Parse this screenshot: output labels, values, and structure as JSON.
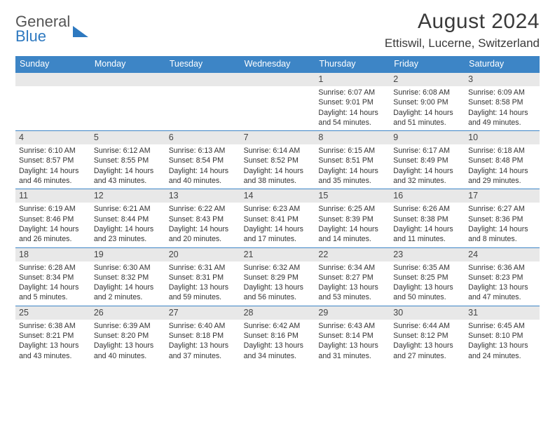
{
  "logo": {
    "line1": "General",
    "line2": "Blue"
  },
  "title": "August 2024",
  "location": "Ettiswil, Lucerne, Switzerland",
  "colors": {
    "header_bg": "#3d85c6",
    "header_text": "#ffffff",
    "daynum_bg": "#e8e8e8",
    "border": "#3d85c6",
    "text": "#3a3a3a"
  },
  "weekdays": [
    "Sunday",
    "Monday",
    "Tuesday",
    "Wednesday",
    "Thursday",
    "Friday",
    "Saturday"
  ],
  "weeks": [
    [
      null,
      null,
      null,
      null,
      {
        "n": "1",
        "sr": "6:07 AM",
        "ss": "9:01 PM",
        "dl": "14 hours and 54 minutes."
      },
      {
        "n": "2",
        "sr": "6:08 AM",
        "ss": "9:00 PM",
        "dl": "14 hours and 51 minutes."
      },
      {
        "n": "3",
        "sr": "6:09 AM",
        "ss": "8:58 PM",
        "dl": "14 hours and 49 minutes."
      }
    ],
    [
      {
        "n": "4",
        "sr": "6:10 AM",
        "ss": "8:57 PM",
        "dl": "14 hours and 46 minutes."
      },
      {
        "n": "5",
        "sr": "6:12 AM",
        "ss": "8:55 PM",
        "dl": "14 hours and 43 minutes."
      },
      {
        "n": "6",
        "sr": "6:13 AM",
        "ss": "8:54 PM",
        "dl": "14 hours and 40 minutes."
      },
      {
        "n": "7",
        "sr": "6:14 AM",
        "ss": "8:52 PM",
        "dl": "14 hours and 38 minutes."
      },
      {
        "n": "8",
        "sr": "6:15 AM",
        "ss": "8:51 PM",
        "dl": "14 hours and 35 minutes."
      },
      {
        "n": "9",
        "sr": "6:17 AM",
        "ss": "8:49 PM",
        "dl": "14 hours and 32 minutes."
      },
      {
        "n": "10",
        "sr": "6:18 AM",
        "ss": "8:48 PM",
        "dl": "14 hours and 29 minutes."
      }
    ],
    [
      {
        "n": "11",
        "sr": "6:19 AM",
        "ss": "8:46 PM",
        "dl": "14 hours and 26 minutes."
      },
      {
        "n": "12",
        "sr": "6:21 AM",
        "ss": "8:44 PM",
        "dl": "14 hours and 23 minutes."
      },
      {
        "n": "13",
        "sr": "6:22 AM",
        "ss": "8:43 PM",
        "dl": "14 hours and 20 minutes."
      },
      {
        "n": "14",
        "sr": "6:23 AM",
        "ss": "8:41 PM",
        "dl": "14 hours and 17 minutes."
      },
      {
        "n": "15",
        "sr": "6:25 AM",
        "ss": "8:39 PM",
        "dl": "14 hours and 14 minutes."
      },
      {
        "n": "16",
        "sr": "6:26 AM",
        "ss": "8:38 PM",
        "dl": "14 hours and 11 minutes."
      },
      {
        "n": "17",
        "sr": "6:27 AM",
        "ss": "8:36 PM",
        "dl": "14 hours and 8 minutes."
      }
    ],
    [
      {
        "n": "18",
        "sr": "6:28 AM",
        "ss": "8:34 PM",
        "dl": "14 hours and 5 minutes."
      },
      {
        "n": "19",
        "sr": "6:30 AM",
        "ss": "8:32 PM",
        "dl": "14 hours and 2 minutes."
      },
      {
        "n": "20",
        "sr": "6:31 AM",
        "ss": "8:31 PM",
        "dl": "13 hours and 59 minutes."
      },
      {
        "n": "21",
        "sr": "6:32 AM",
        "ss": "8:29 PM",
        "dl": "13 hours and 56 minutes."
      },
      {
        "n": "22",
        "sr": "6:34 AM",
        "ss": "8:27 PM",
        "dl": "13 hours and 53 minutes."
      },
      {
        "n": "23",
        "sr": "6:35 AM",
        "ss": "8:25 PM",
        "dl": "13 hours and 50 minutes."
      },
      {
        "n": "24",
        "sr": "6:36 AM",
        "ss": "8:23 PM",
        "dl": "13 hours and 47 minutes."
      }
    ],
    [
      {
        "n": "25",
        "sr": "6:38 AM",
        "ss": "8:21 PM",
        "dl": "13 hours and 43 minutes."
      },
      {
        "n": "26",
        "sr": "6:39 AM",
        "ss": "8:20 PM",
        "dl": "13 hours and 40 minutes."
      },
      {
        "n": "27",
        "sr": "6:40 AM",
        "ss": "8:18 PM",
        "dl": "13 hours and 37 minutes."
      },
      {
        "n": "28",
        "sr": "6:42 AM",
        "ss": "8:16 PM",
        "dl": "13 hours and 34 minutes."
      },
      {
        "n": "29",
        "sr": "6:43 AM",
        "ss": "8:14 PM",
        "dl": "13 hours and 31 minutes."
      },
      {
        "n": "30",
        "sr": "6:44 AM",
        "ss": "8:12 PM",
        "dl": "13 hours and 27 minutes."
      },
      {
        "n": "31",
        "sr": "6:45 AM",
        "ss": "8:10 PM",
        "dl": "13 hours and 24 minutes."
      }
    ]
  ],
  "labels": {
    "sunrise": "Sunrise:",
    "sunset": "Sunset:",
    "daylight": "Daylight:"
  }
}
